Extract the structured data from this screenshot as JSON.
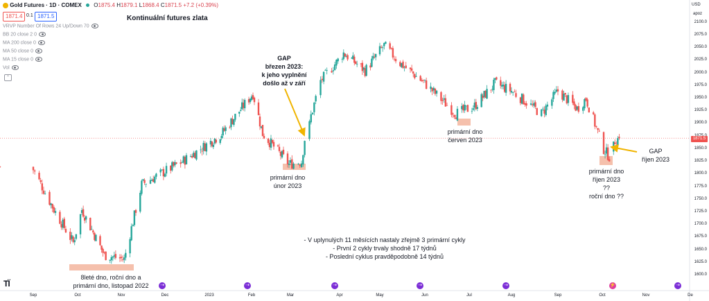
{
  "header": {
    "symbol": "Gold Futures · 1D · COMEX",
    "open_label": "O",
    "open": "1875.4",
    "high_label": "H",
    "high": "1879.1",
    "low_label": "L",
    "low": "1868.4",
    "close_label": "C",
    "close": "1871.5",
    "change": "+7.2 (+0.39%)",
    "sell_price": "1871.4",
    "spread": "0.1",
    "buy_price": "1871.5",
    "chart_title": "Kontinuální futures zlata"
  },
  "indicators": [
    "VRVP Number Of Rows 24 Up/Down 70",
    "BB 20 close 2 0",
    "MA 200 close 0",
    "MA 50 close 0",
    "MA 15 close 0",
    "Vol"
  ],
  "price_axis": {
    "currency": "USD",
    "mode": "apoz",
    "ticks": [
      "2100.0",
      "2075.0",
      "2050.0",
      "2025.0",
      "2000.0",
      "1975.0",
      "1950.0",
      "1925.0",
      "1900.0",
      "1875.0",
      "1850.0",
      "1825.0",
      "1800.0",
      "1775.0",
      "1750.0",
      "1725.0",
      "1700.0",
      "1675.0",
      "1650.0",
      "1625.0",
      "1600.0"
    ],
    "current_price": "1871.5"
  },
  "time_axis": {
    "labels": [
      "Sep",
      "Oct",
      "Nov",
      "Dec",
      "2023",
      "Feb",
      "Mar",
      "Apr",
      "May",
      "Jun",
      "Jul",
      "Aug",
      "Sep",
      "Oct",
      "Nov",
      "De"
    ]
  },
  "annotations": {
    "bottom_2022": [
      "8leté dno, roční dno a",
      "primární dno, listopad 2022"
    ],
    "gap_march": [
      "GAP",
      "březen 2023:",
      "k jeho vyplnění",
      "došlo až v září"
    ],
    "low_feb": [
      "primární dno",
      "únor 2023"
    ],
    "low_june": [
      "primární dno",
      "červen 2023"
    ],
    "gap_oct": [
      "GAP",
      "říjen 2023"
    ],
    "low_oct": [
      "primární dno",
      "říjen 2023",
      "??",
      "roční dno ??"
    ],
    "summary": [
      "- V uplynulých 11 měsících nastaly zřejmě 3 primární cykly",
      "- První 2 cykly trvaly shodně 17 týdnů",
      "- Poslední cyklus pravděpodobně 14 týdnů"
    ]
  },
  "colors": {
    "up": "#26a69a",
    "down": "#ef5350",
    "arrow": "#f0b400",
    "highlight": "#f5c0ac",
    "marker": "#7b2dd6",
    "price_line": "#ef5350"
  },
  "chart_data": {
    "type": "candlestick",
    "title": "Kontinuální futures zlata",
    "ylim": [
      1600,
      2100
    ],
    "x_labels": [
      "Sep",
      "Oct",
      "Nov",
      "Dec",
      "2023",
      "Feb",
      "Mar",
      "Apr",
      "May",
      "Jun",
      "Jul",
      "Aug",
      "Sep",
      "Oct",
      "Nov",
      "De"
    ],
    "anchors": [
      {
        "date": "2022-08-31",
        "price": 1815
      },
      {
        "date": "2022-09-15",
        "price": 1730
      },
      {
        "date": "2022-09-28",
        "price": 1665
      },
      {
        "date": "2022-10-04",
        "price": 1730
      },
      {
        "date": "2022-10-20",
        "price": 1640
      },
      {
        "date": "2022-11-03",
        "price": 1632
      },
      {
        "date": "2022-11-15",
        "price": 1780
      },
      {
        "date": "2022-12-13",
        "price": 1825
      },
      {
        "date": "2023-01-10",
        "price": 1880
      },
      {
        "date": "2023-02-02",
        "price": 1960
      },
      {
        "date": "2023-02-09",
        "price": 1880
      },
      {
        "date": "2023-02-28",
        "price": 1820
      },
      {
        "date": "2023-03-08",
        "price": 1825
      },
      {
        "date": "2023-03-10",
        "price": 1870
      },
      {
        "date": "2023-03-20",
        "price": 1985
      },
      {
        "date": "2023-04-04",
        "price": 2040
      },
      {
        "date": "2023-04-20",
        "price": 2005
      },
      {
        "date": "2023-05-04",
        "price": 2055
      },
      {
        "date": "2023-05-15",
        "price": 2020
      },
      {
        "date": "2023-06-01",
        "price": 1980
      },
      {
        "date": "2023-06-22",
        "price": 1920
      },
      {
        "date": "2023-07-05",
        "price": 1935
      },
      {
        "date": "2023-07-20",
        "price": 1980
      },
      {
        "date": "2023-08-01",
        "price": 1965
      },
      {
        "date": "2023-08-21",
        "price": 1920
      },
      {
        "date": "2023-09-01",
        "price": 1965
      },
      {
        "date": "2023-09-14",
        "price": 1930
      },
      {
        "date": "2023-09-20",
        "price": 1950
      },
      {
        "date": "2023-10-02",
        "price": 1850
      },
      {
        "date": "2023-10-06",
        "price": 1835
      },
      {
        "date": "2023-10-09",
        "price": 1865
      },
      {
        "date": "2023-10-13",
        "price": 1871.5
      }
    ],
    "gaps": [
      {
        "date": "2023-03-13",
        "from": 1870,
        "to": 1905
      },
      {
        "date": "2023-10-09",
        "from": 1845,
        "to": 1865
      }
    ],
    "last_price": 1871.5
  }
}
